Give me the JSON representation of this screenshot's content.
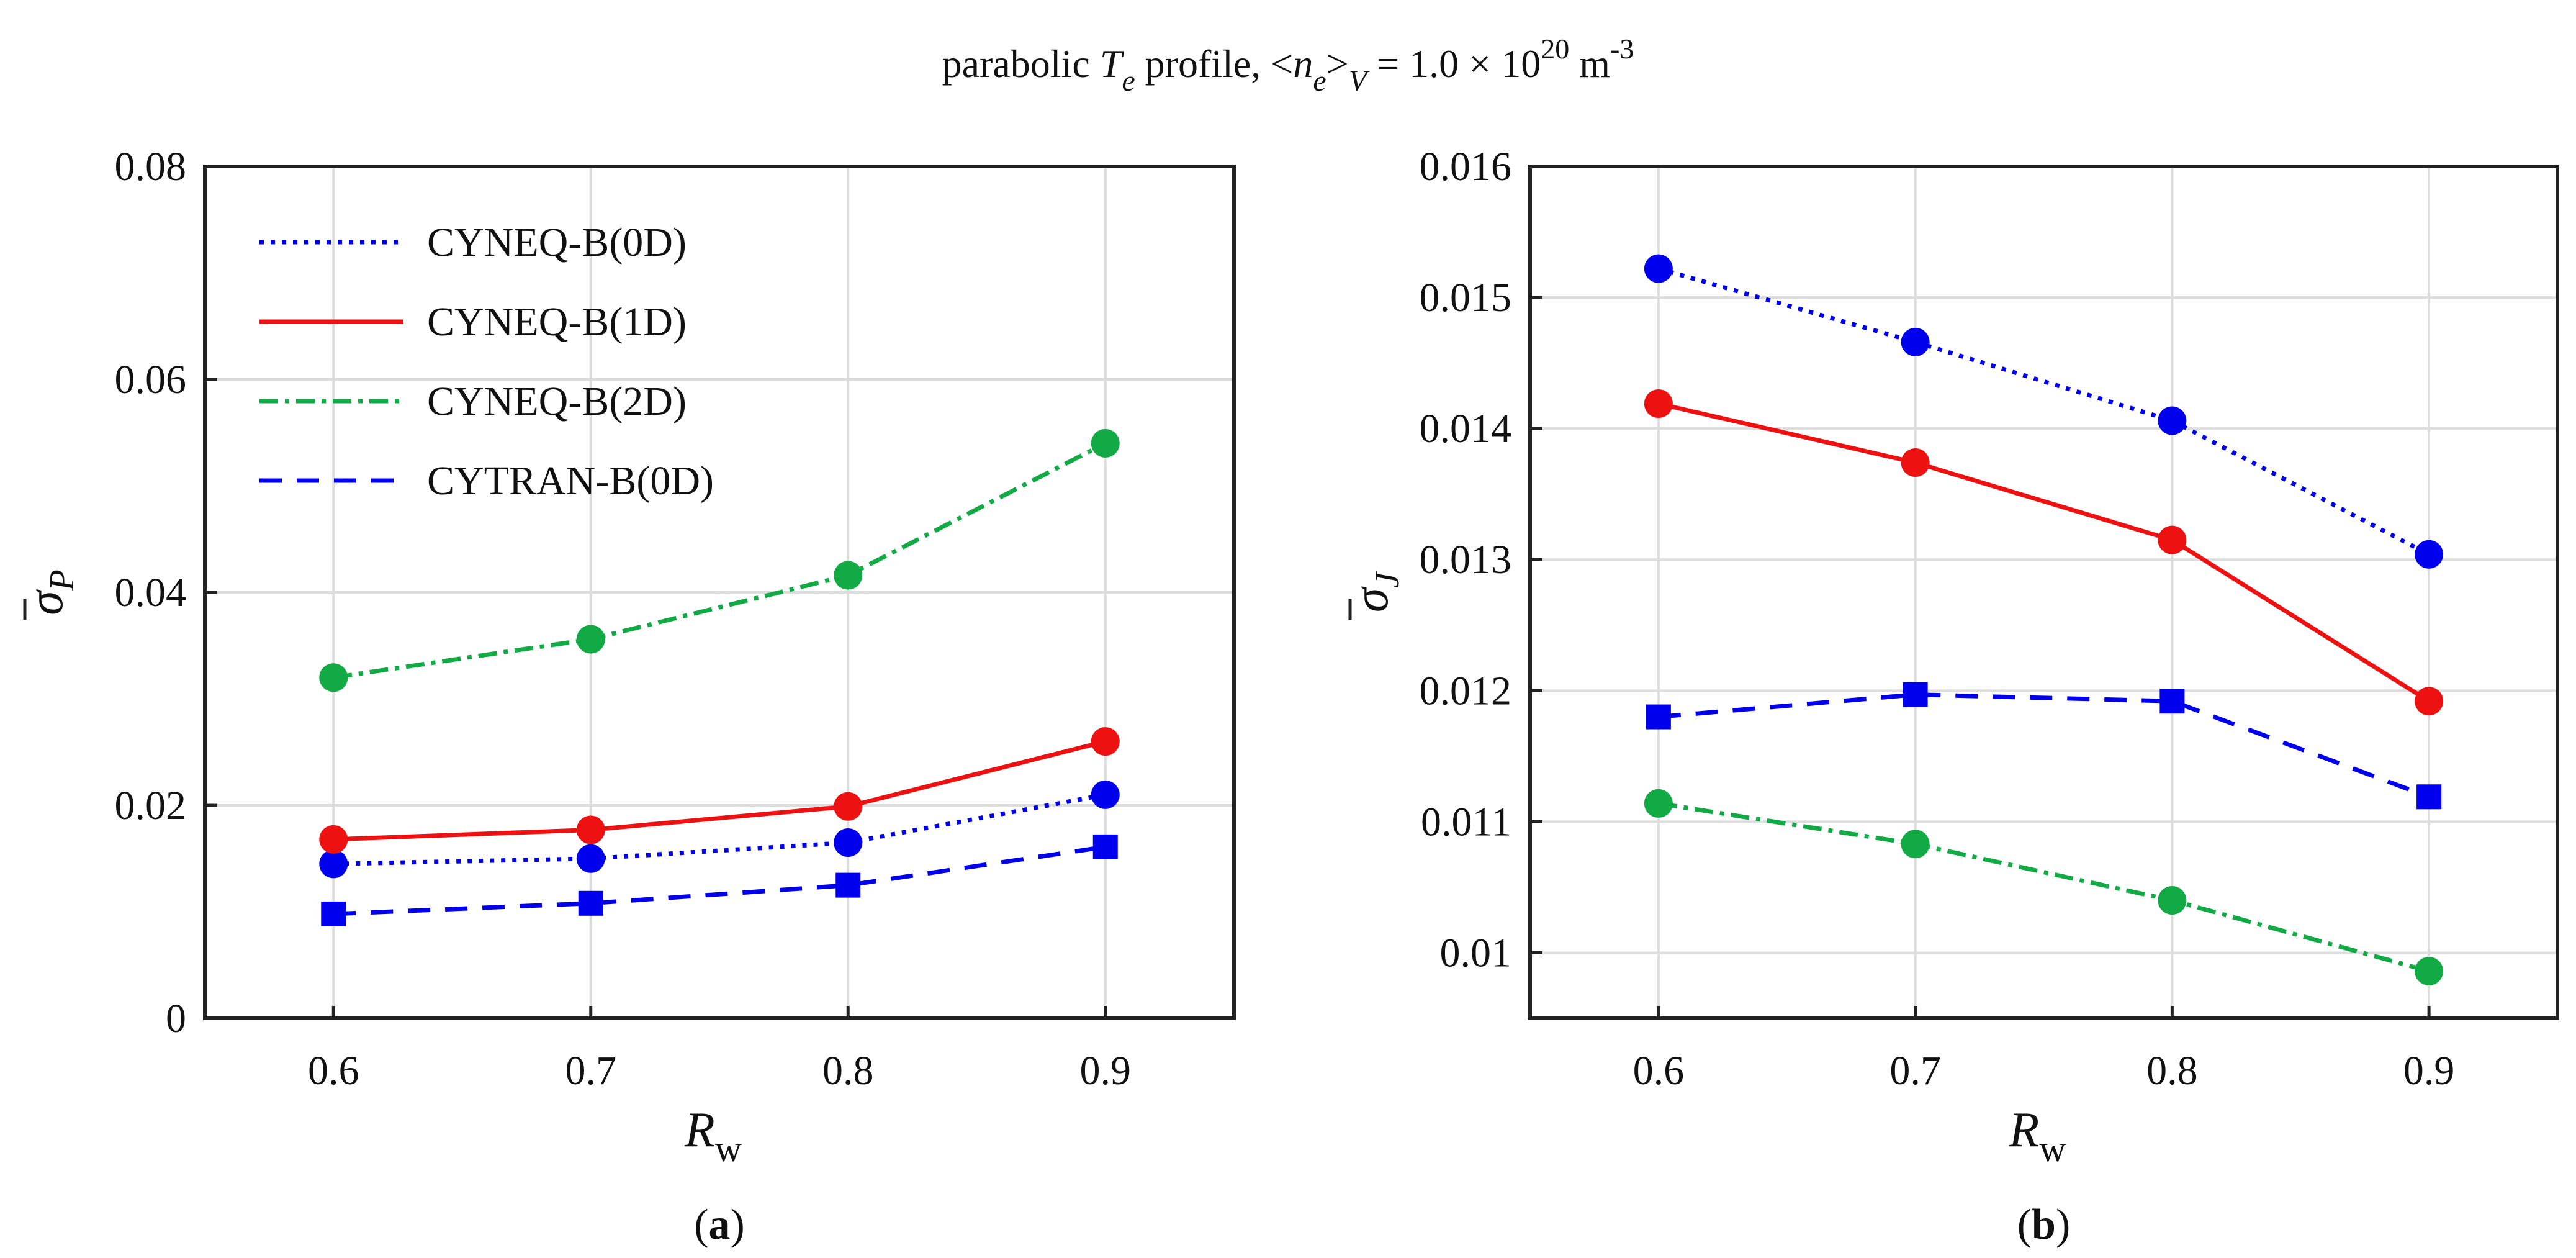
{
  "figure_title": {
    "prefix": "parabolic ",
    "T": "T",
    "e1": "e",
    "profile": " profile, <",
    "n": "n",
    "e2": "e",
    "gt": ">",
    "V": "V",
    "equals": " = 1.0 × 10",
    "exponent": "20",
    "unit": " m",
    "unit_exp": "-3"
  },
  "colors": {
    "cyneq_0d": "#0000ee",
    "cyneq_1d": "#ee1111",
    "cyneq_2d": "#11aa44",
    "cytran_0d": "#0000ee",
    "grid": "#dddddd",
    "axes": "#222222"
  },
  "chart_data": [
    {
      "type": "line",
      "panel": "(a)",
      "panel_letter": "a",
      "title": "",
      "xlabel": "R",
      "xlabel_sub": "w",
      "ylabel": "σ",
      "ylabel_sub": "P",
      "x": [
        0.6,
        0.7,
        0.8,
        0.9
      ],
      "xlim": [
        0.55,
        0.95
      ],
      "ylim": [
        0,
        0.08
      ],
      "xticks": [
        0.6,
        0.7,
        0.8,
        0.9
      ],
      "xtick_labels": [
        "0.6",
        "0.7",
        "0.8",
        "0.9"
      ],
      "yticks": [
        0,
        0.02,
        0.04,
        0.06,
        0.08
      ],
      "ytick_labels": [
        "0",
        "0.02",
        "0.04",
        "0.06",
        "0.08"
      ],
      "grid": true,
      "legend_position": "top-left",
      "series": [
        {
          "name": "CYNEQ-B(0D)",
          "key": "cyneq_0d",
          "line": "dotted",
          "marker": "circle",
          "values": [
            0.0145,
            0.015,
            0.0165,
            0.021
          ]
        },
        {
          "name": "CYNEQ-B(1D)",
          "key": "cyneq_1d",
          "line": "solid",
          "marker": "circle",
          "values": [
            0.0168,
            0.0177,
            0.0199,
            0.026
          ]
        },
        {
          "name": "CYNEQ-B(2D)",
          "key": "cyneq_2d",
          "line": "dashdot",
          "marker": "circle",
          "values": [
            0.032,
            0.0356,
            0.0416,
            0.054
          ]
        },
        {
          "name": "CYTRAN-B(0D)",
          "key": "cytran_0d",
          "line": "dashed",
          "marker": "square",
          "values": [
            0.0098,
            0.0108,
            0.0125,
            0.0161
          ]
        }
      ]
    },
    {
      "type": "line",
      "panel": "(b)",
      "panel_letter": "b",
      "title": "",
      "xlabel": "R",
      "xlabel_sub": "w",
      "ylabel": "σ",
      "ylabel_sub": "J",
      "x": [
        0.6,
        0.7,
        0.8,
        0.9
      ],
      "xlim": [
        0.55,
        0.95
      ],
      "ylim": [
        0.0095,
        0.016
      ],
      "xticks": [
        0.6,
        0.7,
        0.8,
        0.9
      ],
      "xtick_labels": [
        "0.6",
        "0.7",
        "0.8",
        "0.9"
      ],
      "yticks": [
        0.01,
        0.011,
        0.012,
        0.013,
        0.014,
        0.015,
        0.016
      ],
      "ytick_labels": [
        "0.01",
        "0.011",
        "0.012",
        "0.013",
        "0.014",
        "0.015",
        "0.016"
      ],
      "grid": true,
      "legend_position": "none",
      "series": [
        {
          "name": "CYNEQ-B(0D)",
          "key": "cyneq_0d",
          "line": "dotted",
          "marker": "circle",
          "values": [
            0.01522,
            0.01466,
            0.01406,
            0.01304
          ]
        },
        {
          "name": "CYNEQ-B(1D)",
          "key": "cyneq_1d",
          "line": "solid",
          "marker": "circle",
          "values": [
            0.01419,
            0.01374,
            0.01315,
            0.01192
          ]
        },
        {
          "name": "CYNEQ-B(2D)",
          "key": "cyneq_2d",
          "line": "dashdot",
          "marker": "circle",
          "values": [
            0.01114,
            0.01083,
            0.0104,
            0.00986
          ]
        },
        {
          "name": "CYTRAN-B(0D)",
          "key": "cytran_0d",
          "line": "dashed",
          "marker": "square",
          "values": [
            0.0118,
            0.01197,
            0.01192,
            0.01119
          ]
        }
      ]
    }
  ]
}
